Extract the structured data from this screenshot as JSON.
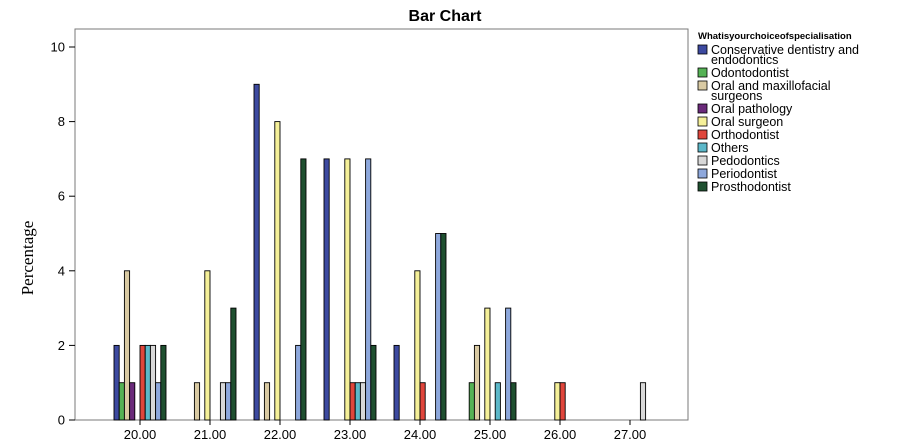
{
  "chart_data": {
    "type": "bar",
    "title": "Bar Chart",
    "xlabel": "",
    "ylabel": "Percentage",
    "ylim": [
      0,
      10
    ],
    "yticks": [
      0,
      2,
      4,
      6,
      8,
      10
    ],
    "grid": false,
    "legend_position": "right",
    "legend_title": "Whatisyourchoiceofspecialisation",
    "categories": [
      "20.00",
      "21.00",
      "22.00",
      "23.00",
      "24.00",
      "25.00",
      "26.00",
      "27.00"
    ],
    "series": [
      {
        "name": "Conservative dentistry and endodontics",
        "name_lines": [
          "Conservative dentistry and",
          "endodontics"
        ],
        "color": "#3d4aa0",
        "values": [
          2,
          0,
          9,
          7,
          2,
          0,
          0,
          0
        ]
      },
      {
        "name": "Odontodontist",
        "name_lines": [
          "Odontodontist"
        ],
        "color": "#55b255",
        "values": [
          1,
          0,
          0,
          0,
          0,
          1,
          0,
          0
        ]
      },
      {
        "name": "Oral and maxillofacial surgeons",
        "name_lines": [
          "Oral and maxillofacial",
          "surgeons"
        ],
        "color": "#d9caa3",
        "values": [
          4,
          1,
          1,
          0,
          0,
          2,
          0,
          0
        ]
      },
      {
        "name": "Oral pathology",
        "name_lines": [
          "Oral pathology"
        ],
        "color": "#6a2a7a",
        "values": [
          1,
          0,
          0,
          0,
          0,
          0,
          0,
          0
        ]
      },
      {
        "name": "Oral surgeon",
        "name_lines": [
          "Oral surgeon"
        ],
        "color": "#f5f099",
        "values": [
          0,
          4,
          8,
          7,
          4,
          3,
          1,
          0
        ]
      },
      {
        "name": "Orthodontist",
        "name_lines": [
          "Orthodontist"
        ],
        "color": "#e0463c",
        "values": [
          2,
          0,
          0,
          1,
          1,
          0,
          1,
          0
        ]
      },
      {
        "name": "Others",
        "name_lines": [
          "Others"
        ],
        "color": "#5cb8c9",
        "values": [
          2,
          0,
          0,
          1,
          0,
          1,
          0,
          0
        ]
      },
      {
        "name": "Pedodontics",
        "name_lines": [
          "Pedodontics"
        ],
        "color": "#d8d8d8",
        "values": [
          2,
          1,
          0,
          1,
          0,
          0,
          0,
          1
        ]
      },
      {
        "name": "Periodontist",
        "name_lines": [
          "Periodontist"
        ],
        "color": "#8ea8dc",
        "values": [
          1,
          1,
          2,
          7,
          5,
          3,
          0,
          0
        ]
      },
      {
        "name": "Prosthodontist",
        "name_lines": [
          "Prosthodontist"
        ],
        "color": "#1f5030",
        "values": [
          2,
          3,
          7,
          2,
          5,
          1,
          0,
          0
        ]
      }
    ]
  }
}
